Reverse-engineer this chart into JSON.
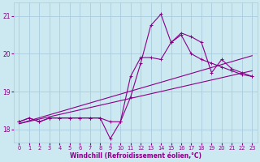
{
  "xlabel": "Windchill (Refroidissement éolien,°C)",
  "background_color": "#cce8f0",
  "grid_color": "#aaccdd",
  "line_color": "#880088",
  "xlim": [
    -0.5,
    23.5
  ],
  "ylim": [
    17.65,
    21.35
  ],
  "xticks": [
    0,
    1,
    2,
    3,
    4,
    5,
    6,
    7,
    8,
    9,
    10,
    11,
    12,
    13,
    14,
    15,
    16,
    17,
    18,
    19,
    20,
    21,
    22,
    23
  ],
  "yticks": [
    18,
    19,
    20,
    21
  ],
  "series1_x": [
    0,
    1,
    2,
    3,
    4,
    5,
    6,
    7,
    8,
    9,
    10,
    11,
    12,
    13,
    14,
    15,
    16,
    17,
    18,
    19,
    20,
    21,
    22,
    23
  ],
  "series1_y": [
    18.2,
    18.3,
    18.2,
    18.3,
    18.3,
    18.3,
    18.3,
    18.3,
    18.3,
    18.2,
    18.2,
    18.85,
    19.75,
    20.75,
    21.05,
    20.3,
    20.5,
    20.0,
    19.85,
    19.75,
    19.65,
    19.55,
    19.45,
    19.4
  ],
  "series2_x": [
    0,
    1,
    2,
    3,
    4,
    5,
    6,
    7,
    8,
    9,
    10,
    11,
    12,
    13,
    14,
    15,
    16,
    17,
    18,
    19,
    20,
    21,
    22,
    23
  ],
  "series2_y": [
    18.2,
    18.3,
    18.2,
    18.3,
    18.3,
    18.3,
    18.3,
    18.3,
    18.3,
    17.75,
    18.2,
    19.4,
    19.9,
    19.9,
    19.85,
    20.3,
    20.55,
    20.45,
    20.3,
    19.5,
    19.85,
    19.6,
    19.5,
    19.4
  ],
  "trend1_x": [
    0,
    23
  ],
  "trend1_y": [
    18.15,
    19.95
  ],
  "trend2_x": [
    0,
    23
  ],
  "trend2_y": [
    18.15,
    19.55
  ]
}
